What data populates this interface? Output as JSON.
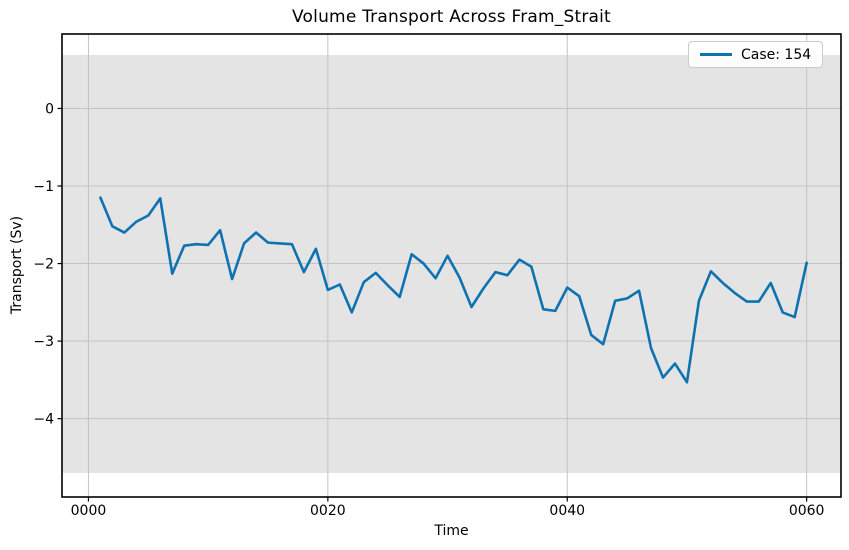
{
  "legend": {
    "label": "Case: 154"
  },
  "chart_data": {
    "type": "line",
    "title": "Volume Transport Across Fram_Strait",
    "xlabel": "Time",
    "ylabel": "Transport (Sv)",
    "xlim": [
      -2.21,
      62.87
    ],
    "ylim": [
      -5.01,
      0.96
    ],
    "grid": true,
    "legend_position": "upper right",
    "x_ticks": {
      "values": [
        0,
        20,
        40,
        60
      ],
      "labels": [
        "0000",
        "0020",
        "0040",
        "0060"
      ]
    },
    "y_ticks": {
      "values": [
        0,
        -1,
        -2,
        -3,
        -4
      ],
      "labels": [
        "0",
        "−1",
        "−2",
        "−3",
        "−4"
      ]
    },
    "band": {
      "ymin": -4.7,
      "ymax": 0.69,
      "color": "#e4e4e4"
    },
    "series": [
      {
        "name": "Case: 154",
        "color": "#0d72b1",
        "x": [
          1,
          2,
          3,
          4,
          5,
          6,
          7,
          8,
          9,
          10,
          11,
          12,
          13,
          14,
          15,
          16,
          17,
          18,
          19,
          20,
          21,
          22,
          23,
          24,
          25,
          26,
          27,
          28,
          29,
          30,
          31,
          32,
          33,
          34,
          35,
          36,
          37,
          38,
          39,
          40,
          41,
          42,
          43,
          44,
          45,
          46,
          47,
          48,
          49,
          50,
          51,
          52,
          53,
          54,
          55,
          56,
          57,
          58,
          59,
          60
        ],
        "values": [
          -1.15,
          -1.52,
          -1.6,
          -1.46,
          -1.38,
          -1.16,
          -2.13,
          -1.77,
          -1.75,
          -1.76,
          -1.57,
          -2.2,
          -1.74,
          -1.6,
          -1.73,
          -1.74,
          -1.75,
          -2.11,
          -1.81,
          -2.34,
          -2.27,
          -2.63,
          -2.24,
          -2.12,
          -2.28,
          -2.43,
          -1.88,
          -2.0,
          -2.19,
          -1.9,
          -2.18,
          -2.56,
          -2.32,
          -2.11,
          -2.15,
          -1.95,
          -2.04,
          -2.59,
          -2.61,
          -2.31,
          -2.42,
          -2.92,
          -3.04,
          -2.48,
          -2.45,
          -2.35,
          -3.09,
          -3.47,
          -3.29,
          -3.53,
          -2.48,
          -2.1,
          -2.25,
          -2.38,
          -2.49,
          -2.49,
          -2.25,
          -2.63,
          -2.69,
          -1.99
        ]
      }
    ]
  },
  "colors": {
    "background": "#ffffff",
    "grid": "#c3c3c3",
    "spine": "#000000",
    "text": "#000000",
    "legend_border": "#cccccc"
  }
}
